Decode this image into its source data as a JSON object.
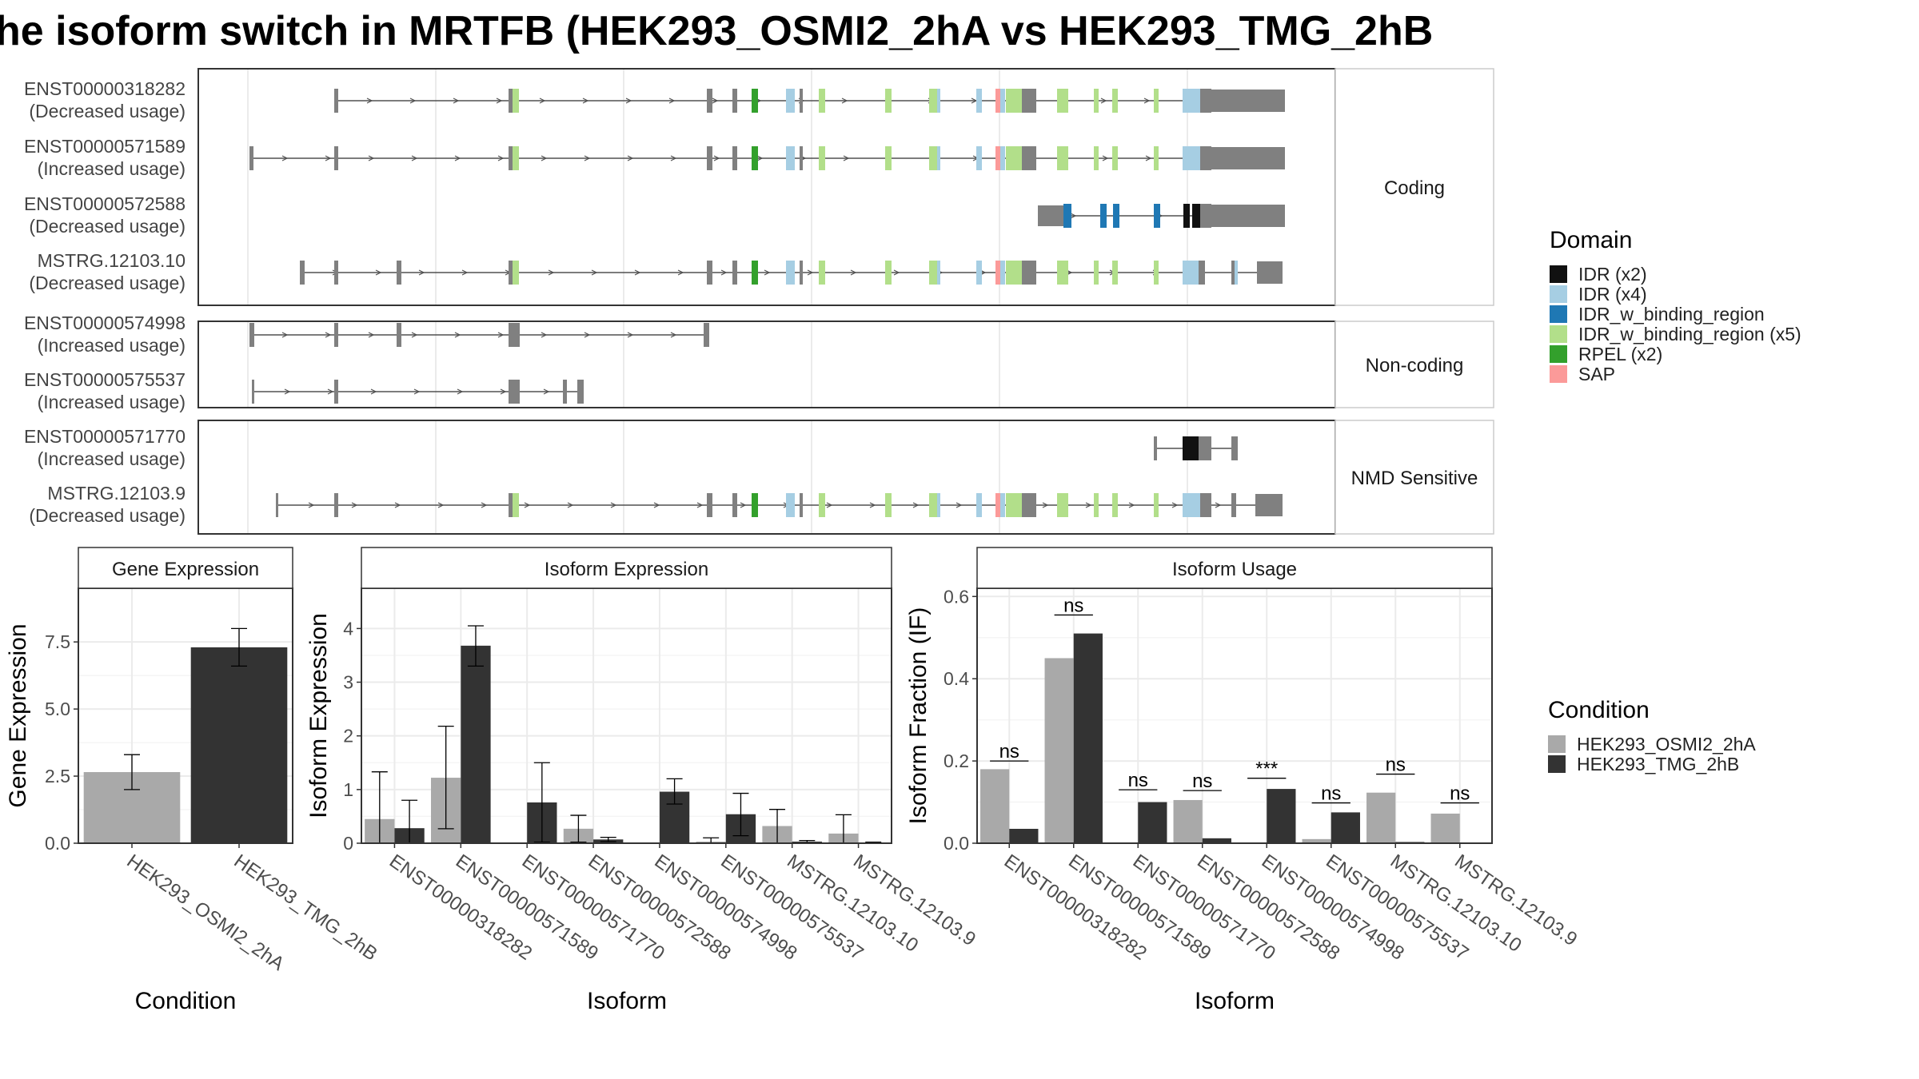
{
  "title": "he isoform switch in MRTFB (HEK293_OSMI2_2hA vs HEK293_TMG_2hB",
  "colors": {
    "intron": "#505050",
    "exon": "#808080",
    "panel_border": "#333333",
    "strip_border": "#cccccc",
    "grid_major": "#ebebeb",
    "grid_minor": "#f5f5f5",
    "cond_a": "#a9a9a9",
    "cond_b": "#333333"
  },
  "structure": {
    "facets": [
      {
        "label": "Coding",
        "transcripts": [
          {
            "id": "ENST00000318282",
            "usage": "(Decreased usage)"
          },
          {
            "id": "ENST00000571589",
            "usage": "(Increased usage)"
          },
          {
            "id": "ENST00000572588",
            "usage": "(Decreased usage)"
          },
          {
            "id": "MSTRG.12103.10",
            "usage": "(Decreased usage)"
          }
        ]
      },
      {
        "label": "Non-coding",
        "transcripts": [
          {
            "id": "ENST00000574998",
            "usage": "(Increased usage)"
          },
          {
            "id": "ENST00000575537",
            "usage": "(Increased usage)"
          }
        ]
      },
      {
        "label": "NMD Sensitive",
        "transcripts": [
          {
            "id": "ENST00000571770",
            "usage": "(Increased usage)"
          },
          {
            "id": "MSTRG.12103.9",
            "usage": "(Decreased usage)"
          }
        ]
      }
    ]
  },
  "domain_legend": {
    "title": "Domain",
    "items": [
      {
        "label": "IDR (x2)",
        "color": "#111111"
      },
      {
        "label": "IDR (x4)",
        "color": "#a6cee3"
      },
      {
        "label": "IDR_w_binding_region",
        "color": "#1f78b4"
      },
      {
        "label": "IDR_w_binding_region (x5)",
        "color": "#b2df8a"
      },
      {
        "label": "RPEL (x2)",
        "color": "#33a02c"
      },
      {
        "label": "SAP",
        "color": "#fb9a99"
      }
    ]
  },
  "condition_legend": {
    "title": "Condition",
    "items": [
      {
        "label": "HEK293_OSMI2_2hA",
        "color": "#a9a9a9"
      },
      {
        "label": "HEK293_TMG_2hB",
        "color": "#333333"
      }
    ]
  },
  "chart_data": [
    {
      "type": "bar",
      "title": "Gene Expression",
      "xlabel": "Condition",
      "ylabel": "Gene Expression",
      "ylim": [
        0,
        9.5
      ],
      "yticks": [
        0.0,
        2.5,
        5.0,
        7.5
      ],
      "ytick_labels": [
        "0.0",
        "2.5",
        "5.0",
        "7.5"
      ],
      "categories": [
        "HEK293_OSMI2_2hA",
        "HEK293_TMG_2hB"
      ],
      "values": [
        2.65,
        7.3
      ],
      "error_low": [
        2.0,
        6.6
      ],
      "error_high": [
        3.3,
        8.0
      ]
    },
    {
      "type": "bar",
      "title": "Isoform Expression",
      "xlabel": "Isoform",
      "ylabel": "Isoform Expression",
      "ylim": [
        0,
        4.75
      ],
      "yticks": [
        0,
        1,
        2,
        3,
        4
      ],
      "ytick_labels": [
        "0",
        "1",
        "2",
        "3",
        "4"
      ],
      "categories": [
        "ENST00000318282",
        "ENST00000571589",
        "ENST00000571770",
        "ENST00000572588",
        "ENST00000574998",
        "ENST00000575537",
        "MSTRG.12103.10",
        "MSTRG.12103.9"
      ],
      "series": [
        {
          "name": "HEK293_OSMI2_2hA",
          "values": [
            0.45,
            1.22,
            0.0,
            0.27,
            0.0,
            0.03,
            0.32,
            0.18
          ],
          "error_low": [
            0.0,
            0.27,
            0.0,
            0.02,
            0.0,
            0.0,
            0.0,
            0.0
          ],
          "error_high": [
            1.33,
            2.18,
            0.0,
            0.52,
            0.0,
            0.1,
            0.63,
            0.53
          ]
        },
        {
          "name": "HEK293_TMG_2hB",
          "values": [
            0.28,
            3.68,
            0.76,
            0.07,
            0.96,
            0.54,
            0.03,
            0.01
          ],
          "error_low": [
            0.0,
            3.3,
            0.02,
            0.03,
            0.73,
            0.14,
            0.0,
            0.0
          ],
          "error_high": [
            0.8,
            4.05,
            1.5,
            0.11,
            1.2,
            0.93,
            0.05,
            0.02
          ]
        }
      ]
    },
    {
      "type": "bar",
      "title": "Isoform Usage",
      "xlabel": "Isoform",
      "ylabel": "Isoform Fraction (IF)",
      "ylim": [
        0,
        0.62
      ],
      "yticks": [
        0.0,
        0.2,
        0.4,
        0.6
      ],
      "ytick_labels": [
        "0.0",
        "0.2",
        "0.4",
        "0.6"
      ],
      "categories": [
        "ENST00000318282",
        "ENST00000571589",
        "ENST00000571770",
        "ENST00000572588",
        "ENST00000574998",
        "ENST00000575537",
        "MSTRG.12103.10",
        "MSTRG.12103.9"
      ],
      "series": [
        {
          "name": "HEK293_OSMI2_2hA",
          "values": [
            0.18,
            0.45,
            0.0,
            0.105,
            0.0,
            0.01,
            0.123,
            0.072
          ]
        },
        {
          "name": "HEK293_TMG_2hB",
          "values": [
            0.035,
            0.51,
            0.1,
            0.012,
            0.132,
            0.075,
            0.003,
            0.0
          ]
        }
      ],
      "significance": [
        "ns",
        "ns",
        "ns",
        "ns",
        "***",
        "ns",
        "ns",
        "ns"
      ],
      "significance_level": [
        0.2,
        0.555,
        0.13,
        0.128,
        0.158,
        0.098,
        0.168,
        0.098
      ]
    }
  ]
}
